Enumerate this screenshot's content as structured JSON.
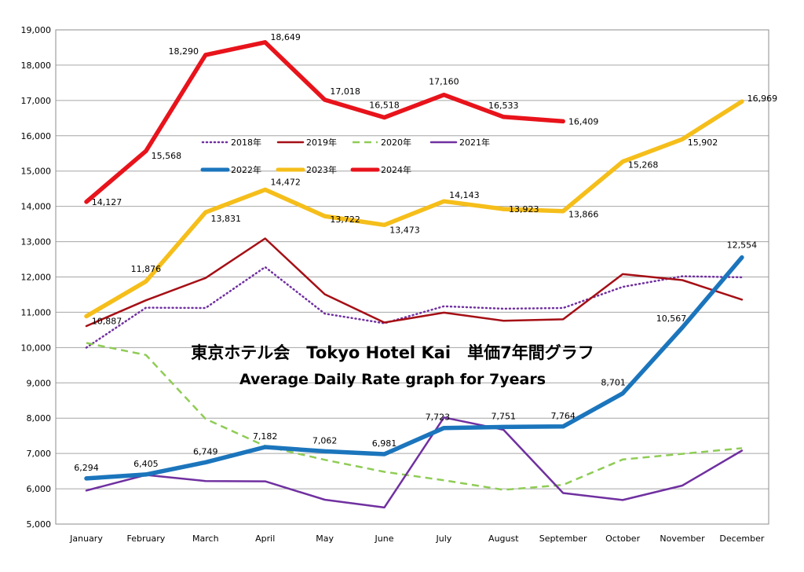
{
  "chart_data": {
    "type": "line",
    "title_line1": "東京ホテル会　Tokyo Hotel Kai　単価7年間グラフ",
    "title_line2": "Average Daily Rate graph for 7years",
    "xlabel": "",
    "ylabel": "",
    "categories": [
      "January",
      "February",
      "March",
      "April",
      "May",
      "June",
      "July",
      "August",
      "September",
      "October",
      "November",
      "December"
    ],
    "ylim": [
      5000,
      19000
    ],
    "ytick_labels": [
      "5,000",
      "6,000",
      "7,000",
      "8,000",
      "9,000",
      "10,000",
      "11,000",
      "12,000",
      "13,000",
      "14,000",
      "15,000",
      "16,000",
      "17,000",
      "18,000",
      "19,000"
    ],
    "grid": "horizontal",
    "legend_position": "upper-left inside plot",
    "series": [
      {
        "name": "2018年",
        "color": "#7030a0",
        "style": "dotted",
        "values": [
          10000,
          11130,
          11120,
          12280,
          10960,
          10690,
          11170,
          11100,
          11120,
          11720,
          12020,
          11990
        ],
        "labels": []
      },
      {
        "name": "2019年",
        "color": "#a50f15",
        "style": "solid-thin",
        "values": [
          10610,
          11340,
          11970,
          13090,
          11510,
          10710,
          10990,
          10760,
          10800,
          12080,
          11910,
          11360
        ],
        "labels": []
      },
      {
        "name": "2020年",
        "color": "#8fcc55",
        "style": "dashed",
        "values": [
          10130,
          9790,
          7980,
          7210,
          6820,
          6480,
          6240,
          5970,
          6110,
          6830,
          6990,
          7150
        ],
        "labels": []
      },
      {
        "name": "2021年",
        "color": "#7030a0",
        "style": "solid-thin",
        "values": [
          5950,
          6390,
          6220,
          6210,
          5690,
          5470,
          8020,
          7670,
          5880,
          5680,
          6090,
          7080
        ],
        "labels": []
      },
      {
        "name": "2022年",
        "color": "#1b75bc",
        "style": "solid-thick",
        "values": [
          6294,
          6405,
          6749,
          7182,
          7062,
          6981,
          7723,
          7751,
          7764,
          8701,
          10567,
          12554
        ],
        "labels": [
          "6,294",
          "6,405",
          "6,749",
          "7,182",
          "7,062",
          "6,981",
          "7,723",
          "7,751",
          "7,764",
          "8,701",
          "10,567",
          "12,554"
        ]
      },
      {
        "name": "2023年",
        "color": "#f5be1a",
        "style": "solid-thick",
        "values": [
          10887,
          11876,
          13831,
          14472,
          13722,
          13473,
          14143,
          13923,
          13866,
          15268,
          15902,
          16969
        ],
        "labels": [
          "10,887",
          "11,876",
          "13,831",
          "14,472",
          "13,722",
          "13,473",
          "14,143",
          "13,923",
          "13,866",
          "15,268",
          "15,902",
          "16,969"
        ]
      },
      {
        "name": "2024年",
        "color": "#e8131b",
        "style": "solid-thick",
        "values": [
          14127,
          15568,
          18290,
          18649,
          17018,
          16518,
          17160,
          16533,
          16409,
          null,
          null,
          null
        ],
        "labels": [
          "14,127",
          "15,568",
          "18,290",
          "18,649",
          "17,018",
          "16,518",
          "17,160",
          "16,533",
          "16,409",
          "",
          "",
          ""
        ]
      }
    ]
  }
}
